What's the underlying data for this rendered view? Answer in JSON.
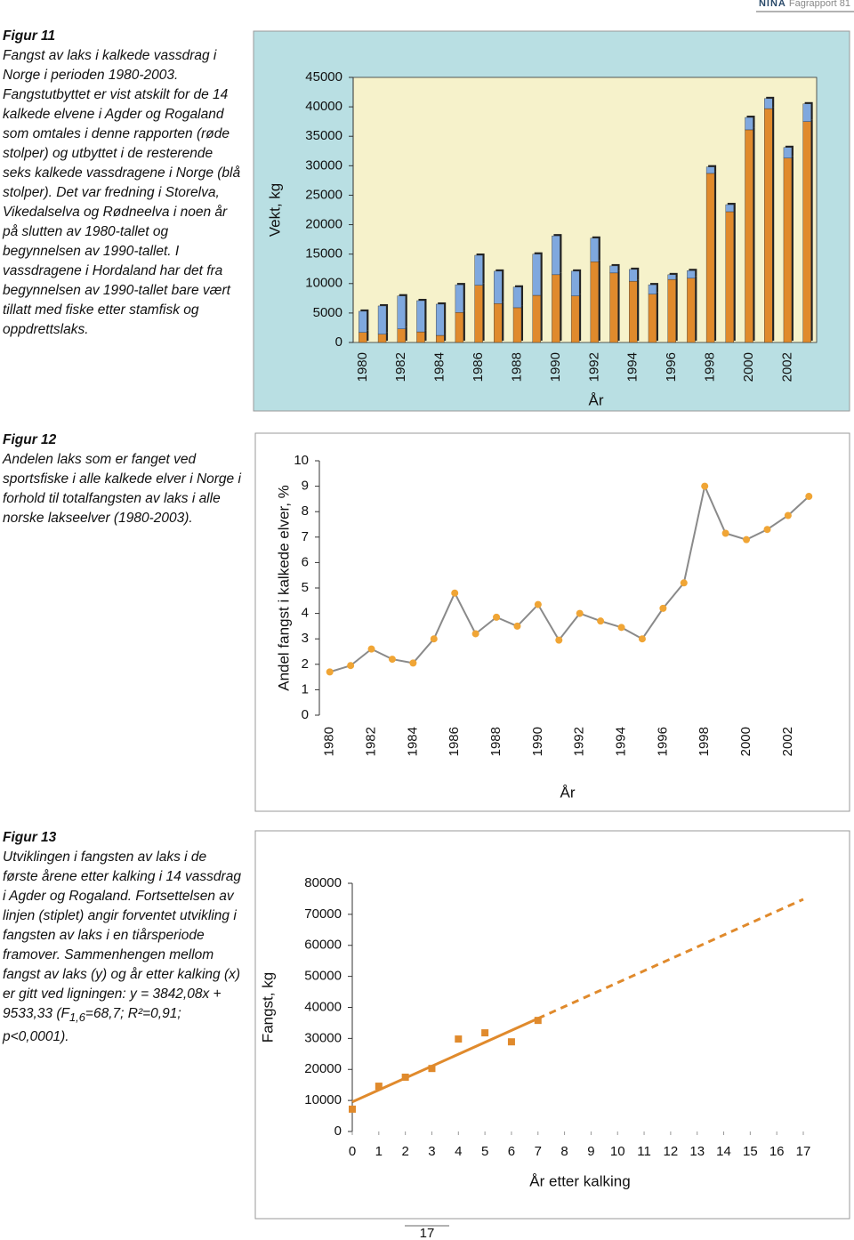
{
  "header": {
    "brand": "NINA",
    "report": "Fagrapport 81"
  },
  "captions": [
    {
      "label": "Figur 11",
      "text": "Fangst av laks i kalkede vassdrag i Norge i perioden 1980-2003. Fangstutbyttet er vist atskilt for de 14 kalkede elvene i Agder og Rogaland som omtales i denne rapporten (røde stolper) og utbyttet i de resterende seks kalkede vassdragene i Norge (blå stolper). Det var fredning i Storelva, Vikedalselva og Rødneelva i noen år på slutten av 1980-tallet og begynnelsen av 1990-tallet. I vassdragene i Hordaland har det fra begynnelsen av 1990-tallet bare vært tillatt med fiske etter stamfisk og oppdrettslaks."
    },
    {
      "label": "Figur 12",
      "text": "Andelen laks som er fanget ved sportsfiske i alle kalkede elver i Norge i forhold til totalfangsten av laks i alle norske lakseelver (1980-2003)."
    },
    {
      "label": "Figur 13",
      "text": "Utviklingen i fangsten av laks i de første årene etter kalking i 14 vassdrag i Agder og Rogaland. Fortsettelsen av linjen (stiplet) angir forventet utvikling i fangsten av laks i en tiårsperiode framover. Sammenhengen mellom fangst av laks (y) og år etter kalking (x) er gitt ved ligningen: y = 3842,08x + 9533,33 (F",
      "subscript": "1,6",
      "text_end": "=68,7; R²=0,91; p<0,0001)."
    }
  ],
  "chart_data": [
    {
      "type": "bar",
      "stacked": true,
      "y_label": "Vekt, kg",
      "x_label": "År",
      "background": "#b9dfe3",
      "plot_background": "#f6f2cb",
      "categories": [
        "1980",
        null,
        "1982",
        null,
        "1984",
        null,
        "1986",
        null,
        "1988",
        null,
        "1990",
        null,
        "1992",
        null,
        "1994",
        null,
        "1996",
        null,
        "1998",
        null,
        "2000",
        null,
        "2002",
        null
      ],
      "series": [
        {
          "color": "#e08a2c",
          "values": [
            1700,
            1400,
            2300,
            1800,
            1200,
            5100,
            9700,
            6600,
            5900,
            8000,
            11500,
            7900,
            13700,
            11800,
            10400,
            8200,
            10700,
            10900,
            28700,
            22200,
            36100,
            39700,
            31300,
            37500
          ]
        },
        {
          "color": "#7fa8de",
          "values": [
            3600,
            4800,
            5600,
            5300,
            5300,
            4700,
            5100,
            5500,
            3500,
            7000,
            6600,
            4200,
            4000,
            1200,
            2000,
            1600,
            800,
            1300,
            1100,
            1200,
            2100,
            1700,
            1800,
            3000
          ]
        }
      ],
      "ylim": [
        0,
        45000
      ],
      "yticks": [
        0,
        5000,
        10000,
        15000,
        20000,
        25000,
        30000,
        35000,
        40000,
        45000
      ]
    },
    {
      "type": "line",
      "y_label": "Andel fangst i kalkede elver, %",
      "x_label": "År",
      "background": "#ffffff",
      "color": "#8a8a8a",
      "marker_color": "#f0a535",
      "categories": [
        "1980",
        null,
        "1982",
        null,
        "1984",
        null,
        "1986",
        null,
        "1988",
        null,
        "1990",
        null,
        "1992",
        null,
        "1994",
        null,
        "1996",
        null,
        "1998",
        null,
        "2000",
        null,
        "2002",
        null
      ],
      "values": [
        1.7,
        1.95,
        2.6,
        2.2,
        2.05,
        3.0,
        4.8,
        3.2,
        3.85,
        3.5,
        4.35,
        2.95,
        4.0,
        3.7,
        3.45,
        3.0,
        4.2,
        5.2,
        9.0,
        7.15,
        6.9,
        7.3,
        7.85,
        8.6
      ],
      "ylim": [
        0,
        10
      ],
      "yticks": [
        0,
        1,
        2,
        3,
        4,
        5,
        6,
        7,
        8,
        9,
        10
      ]
    },
    {
      "type": "scatter",
      "y_label": "Fangst, kg",
      "x_label": "År etter kalking",
      "background": "#ffffff",
      "color": "#e08a2c",
      "x": [
        0,
        1,
        2,
        3,
        4,
        5,
        6,
        7
      ],
      "values": [
        7200,
        14600,
        17500,
        20300,
        29800,
        31800,
        28900,
        35800
      ],
      "lines": [
        {
          "x": [
            0,
            7
          ],
          "values": [
            9533,
            36428
          ],
          "dashed": false
        },
        {
          "x": [
            7,
            17
          ],
          "values": [
            36428,
            74849
          ],
          "dashed": true
        }
      ],
      "xlim": [
        0,
        17
      ],
      "xticks": [
        0,
        1,
        2,
        3,
        4,
        5,
        6,
        7,
        8,
        9,
        10,
        11,
        12,
        13,
        14,
        15,
        16,
        17
      ],
      "ylim": [
        0,
        80000
      ],
      "yticks": [
        0,
        10000,
        20000,
        30000,
        40000,
        50000,
        60000,
        70000,
        80000
      ]
    }
  ],
  "page_number": 17
}
